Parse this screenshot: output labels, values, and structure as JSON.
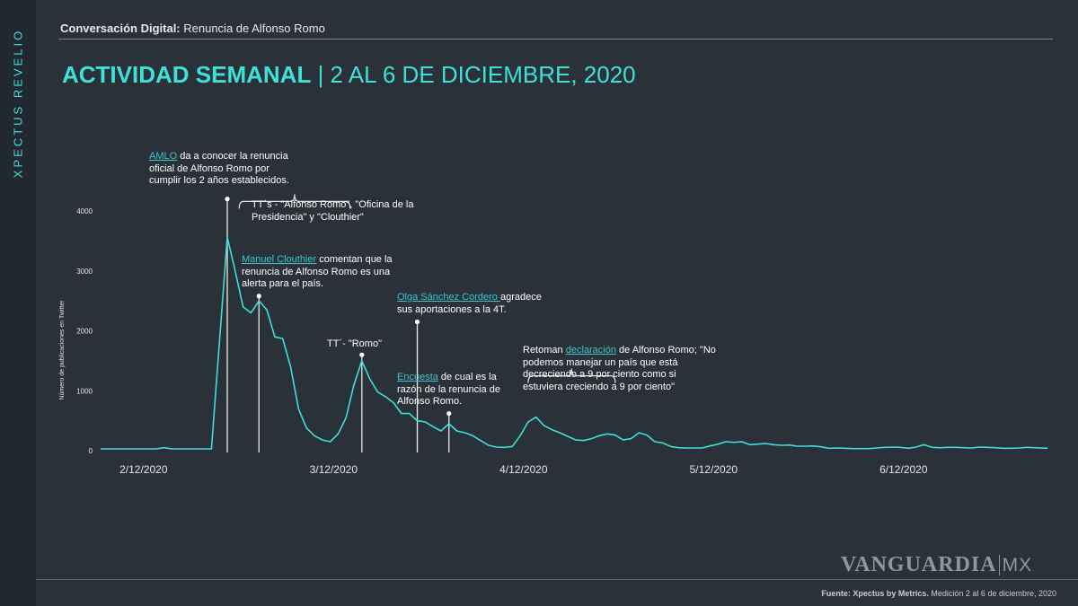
{
  "sidebar": {
    "brand": "XPECTUS REVELIO"
  },
  "header": {
    "subtitle_bold": "Conversación Digital:",
    "subtitle_rest": " Renuncia de Alfonso Romo",
    "title_bold": "ACTIVIDAD SEMANAL",
    "title_rest": " | 2 AL 6 DE DICIEMBRE, 2020"
  },
  "chart_data": {
    "type": "line",
    "ylabel": "Número de publicaciones en Twitter",
    "yticks": [
      0,
      1000,
      2000,
      3000,
      4000
    ],
    "ylim": [
      0,
      4000
    ],
    "x_ticks": [
      {
        "label": "2/12/2020",
        "x": 0
      },
      {
        "label": "3/12/2020",
        "x": 24
      },
      {
        "label": "4/12/2020",
        "x": 48
      },
      {
        "label": "5/12/2020",
        "x": 72
      },
      {
        "label": "6/12/2020",
        "x": 96
      }
    ],
    "xlim": [
      -1,
      118.6
    ],
    "color": "#3fe0d8",
    "series": [
      {
        "name": "",
        "points": [
          [
            -1,
            30
          ],
          [
            0,
            30
          ],
          [
            2,
            30
          ],
          [
            4,
            30
          ],
          [
            6,
            30
          ],
          [
            7,
            50
          ],
          [
            8,
            30
          ],
          [
            10,
            30
          ],
          [
            12,
            30
          ],
          [
            13,
            30
          ],
          [
            14,
            1800
          ],
          [
            15,
            3560
          ],
          [
            16,
            3000
          ],
          [
            17,
            2400
          ],
          [
            18,
            2300
          ],
          [
            19,
            2500
          ],
          [
            20,
            2350
          ],
          [
            21,
            1900
          ],
          [
            22,
            1870
          ],
          [
            23,
            1400
          ],
          [
            24,
            700
          ],
          [
            25,
            380
          ],
          [
            26,
            250
          ],
          [
            27,
            180
          ],
          [
            28,
            150
          ],
          [
            29,
            280
          ],
          [
            30,
            550
          ],
          [
            31,
            1100
          ],
          [
            32,
            1500
          ],
          [
            33,
            1200
          ],
          [
            34,
            980
          ],
          [
            35,
            900
          ],
          [
            36,
            800
          ],
          [
            37,
            620
          ],
          [
            38,
            620
          ],
          [
            39,
            500
          ],
          [
            40,
            480
          ],
          [
            41,
            400
          ],
          [
            42,
            330
          ],
          [
            43,
            450
          ],
          [
            44,
            330
          ],
          [
            45,
            300
          ],
          [
            46,
            250
          ],
          [
            47,
            170
          ],
          [
            48,
            90
          ],
          [
            49,
            60
          ],
          [
            50,
            55
          ],
          [
            51,
            70
          ],
          [
            52,
            250
          ],
          [
            53,
            480
          ],
          [
            54,
            560
          ],
          [
            55,
            420
          ],
          [
            56,
            350
          ],
          [
            57,
            300
          ],
          [
            58,
            240
          ],
          [
            59,
            180
          ],
          [
            60,
            170
          ],
          [
            61,
            200
          ],
          [
            62,
            250
          ],
          [
            63,
            280
          ],
          [
            64,
            260
          ],
          [
            65,
            180
          ],
          [
            66,
            200
          ],
          [
            67,
            300
          ],
          [
            68,
            260
          ],
          [
            69,
            150
          ],
          [
            70,
            130
          ],
          [
            71,
            70
          ],
          [
            72,
            50
          ],
          [
            73,
            45
          ],
          [
            74,
            45
          ],
          [
            75,
            45
          ],
          [
            76,
            80
          ],
          [
            77,
            110
          ],
          [
            78,
            150
          ],
          [
            79,
            140
          ],
          [
            80,
            150
          ],
          [
            81,
            100
          ],
          [
            82,
            110
          ],
          [
            83,
            120
          ],
          [
            84,
            100
          ],
          [
            85,
            90
          ],
          [
            86,
            95
          ],
          [
            87,
            75
          ],
          [
            88,
            75
          ],
          [
            89,
            80
          ],
          [
            90,
            65
          ],
          [
            91,
            40
          ],
          [
            92,
            45
          ],
          [
            93,
            40
          ],
          [
            94,
            35
          ],
          [
            95,
            35
          ],
          [
            96,
            35
          ],
          [
            97,
            45
          ],
          [
            98,
            55
          ],
          [
            99,
            60
          ],
          [
            100,
            55
          ],
          [
            101,
            40
          ],
          [
            102,
            60
          ],
          [
            103,
            100
          ],
          [
            104,
            55
          ],
          [
            105,
            50
          ],
          [
            106,
            55
          ],
          [
            107,
            55
          ],
          [
            108,
            50
          ],
          [
            109,
            45
          ],
          [
            110,
            60
          ],
          [
            111,
            55
          ],
          [
            112,
            50
          ],
          [
            113,
            40
          ],
          [
            114,
            40
          ],
          [
            115,
            45
          ],
          [
            116,
            55
          ],
          [
            117,
            50
          ],
          [
            118.6,
            40
          ]
        ]
      }
    ],
    "markers": [
      {
        "x": 15,
        "y": 4200
      },
      {
        "x": 19,
        "y": 2580
      },
      {
        "x": 32,
        "y": 1600
      },
      {
        "x": 39,
        "y": 2150
      },
      {
        "x": 43,
        "y": 620
      }
    ],
    "brackets": [
      {
        "x1": 16.5,
        "x2": 30.5,
        "y": 3560
      },
      {
        "x1": 53,
        "x2": 64,
        "y": 650
      }
    ]
  },
  "annotations": {
    "amlo": {
      "link": "AMLO",
      "text": " da a conocer la renuncia oficial de  Alfonso Romo por cumplir los 2 años establecidos."
    },
    "tts": {
      "text": "TT´s - \"Alfonso Romo\", \"Oficina de la Presidencia\" y \"Clouthier\""
    },
    "clouthier": {
      "link": "Manuel Clouthier",
      "text": " comentan que la renuncia de Alfonso Romo es una alerta para el país."
    },
    "romo": {
      "text": "TT´- \"Romo\""
    },
    "olga": {
      "link": "Olga Sánchez Cordero ",
      "text": "agradece sus aportaciones a la 4T."
    },
    "encuesta": {
      "link": "Encuesta",
      "text": " de cual es la razón de la renuncia de Alfonso Romo."
    },
    "retoman": {
      "prefix": "Retoman ",
      "link": "declaración",
      "text": " de Alfonso Romo; \"No podemos manejar un país que está decreciendo a 9 por ciento como si estuviera creciendo a 9 por ciento\""
    }
  },
  "logo": {
    "main": "VANGUARDIA",
    "suffix": "MX"
  },
  "footer": {
    "bold": "Fuente: Xpectus by Metrics.",
    "rest": " Medición 2 al 6 de diciembre, 2020"
  }
}
